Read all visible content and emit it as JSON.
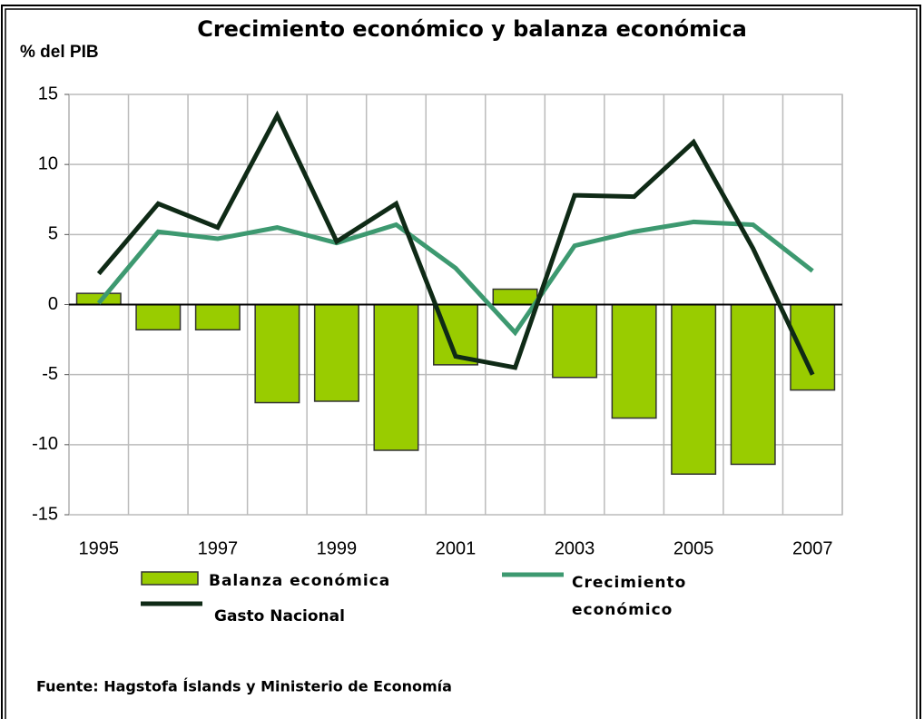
{
  "chart_data": {
    "type": "bar",
    "title": "Crecimiento económico y balanza económica",
    "y_label": "% del PIB",
    "source": "Fuente: Hagstofa Íslands y Ministerio de Economía",
    "categories": [
      "1995",
      null,
      "1997",
      null,
      "1999",
      null,
      "2001",
      null,
      "2003",
      null,
      "2005",
      null,
      "2007"
    ],
    "ylim": [
      -15,
      15
    ],
    "yticks": [
      15,
      10,
      5,
      0,
      -5,
      -10,
      -15
    ],
    "grid": true,
    "legend": "bottom",
    "series": [
      {
        "name": "Balanza económica",
        "type": "bar",
        "color": "#99cc00",
        "values": [
          0.8,
          -1.8,
          -1.8,
          -7.0,
          -6.9,
          -10.4,
          -4.3,
          1.1,
          -5.2,
          -8.1,
          -12.1,
          -11.4,
          -6.1
        ]
      },
      {
        "name": "Crecimiento económico",
        "type": "line",
        "color": "#3d9970",
        "values": [
          0.1,
          5.2,
          4.7,
          5.5,
          4.4,
          5.7,
          2.6,
          -2.0,
          4.2,
          5.2,
          5.9,
          5.7,
          2.4
        ]
      },
      {
        "name": "Gasto Nacional",
        "type": "line",
        "color": "#0f2a16",
        "values": [
          2.2,
          7.2,
          5.5,
          13.5,
          4.5,
          7.2,
          -3.7,
          -4.5,
          7.8,
          7.7,
          11.6,
          4.0,
          -5.0
        ]
      }
    ]
  }
}
